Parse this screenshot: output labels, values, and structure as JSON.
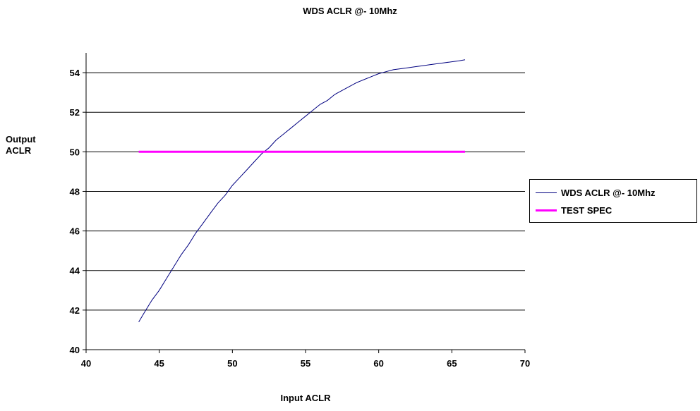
{
  "chart_data": {
    "type": "line",
    "title": "WDS ACLR @- 10Mhz",
    "xlabel": "Input ACLR",
    "ylabel": [
      "Output",
      "ACLR"
    ],
    "xlim": [
      40,
      70
    ],
    "ylim": [
      40,
      55
    ],
    "xticks": [
      40,
      45,
      50,
      55,
      60,
      65,
      70
    ],
    "yticks": [
      40,
      42,
      44,
      46,
      48,
      50,
      52,
      54
    ],
    "grid": "horizontal",
    "legend_position": "right",
    "series": [
      {
        "name": "WDS ACLR @- 10Mhz",
        "color": "#000080",
        "x": [
          43.6,
          44.0,
          44.5,
          45.0,
          45.5,
          46.0,
          46.5,
          47.0,
          47.5,
          48.0,
          48.5,
          49.0,
          49.5,
          50.0,
          50.5,
          51.0,
          51.5,
          52.0,
          52.5,
          53.0,
          53.5,
          54.0,
          54.5,
          55.0,
          55.5,
          56.0,
          56.5,
          57.0,
          57.5,
          58.0,
          58.5,
          59.0,
          59.5,
          60.0,
          60.5,
          61.0,
          61.5,
          62.0,
          62.5,
          63.0,
          63.5,
          64.0,
          64.5,
          65.0,
          65.5,
          65.9
        ],
        "y": [
          41.4,
          41.9,
          42.5,
          43.0,
          43.6,
          44.2,
          44.8,
          45.3,
          45.9,
          46.4,
          46.9,
          47.4,
          47.8,
          48.3,
          48.7,
          49.1,
          49.5,
          49.9,
          50.2,
          50.6,
          50.9,
          51.2,
          51.5,
          51.8,
          52.1,
          52.4,
          52.6,
          52.9,
          53.1,
          53.3,
          53.5,
          53.65,
          53.8,
          53.95,
          54.05,
          54.15,
          54.2,
          54.25,
          54.3,
          54.35,
          54.4,
          54.45,
          54.5,
          54.55,
          54.6,
          54.65
        ]
      },
      {
        "name": "TEST SPEC",
        "color": "#ff00ff",
        "x": [
          43.6,
          65.9
        ],
        "y": [
          50,
          50
        ]
      }
    ]
  }
}
